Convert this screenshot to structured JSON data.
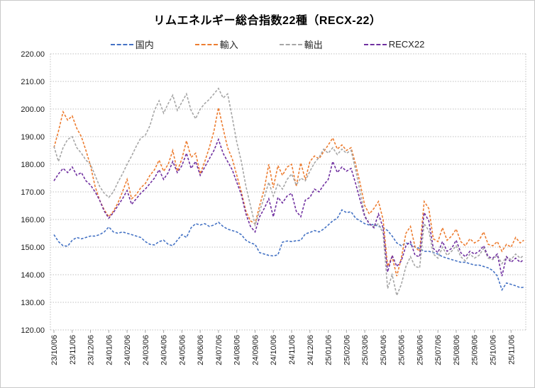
{
  "title": "リムエネルギー総合指数22種（RECX-22）",
  "legend": {
    "items": [
      {
        "key": "domestic",
        "label": "国内",
        "color": "#4472C4"
      },
      {
        "key": "import",
        "label": "輸入",
        "color": "#ED7D31"
      },
      {
        "key": "export",
        "label": "輸出",
        "color": "#A6A6A6"
      },
      {
        "key": "recx22",
        "label": "RECX22",
        "color": "#7030A0"
      }
    ]
  },
  "y_axis": {
    "min": 120,
    "max": 220,
    "step": 10,
    "tick_labels": [
      "220.00",
      "210.00",
      "200.00",
      "190.00",
      "180.00",
      "170.00",
      "160.00",
      "150.00",
      "140.00",
      "130.00",
      "120.00"
    ]
  },
  "x_axis": {
    "tick_labels": [
      "23/10/06",
      "23/11/06",
      "23/12/06",
      "24/01/06",
      "24/02/06",
      "24/03/06",
      "24/04/06",
      "24/05/06",
      "24/06/06",
      "24/07/06",
      "24/08/06",
      "24/09/06",
      "24/10/06",
      "24/11/06",
      "24/12/06",
      "25/01/06",
      "25/02/06",
      "25/03/06",
      "25/04/06",
      "25/05/06",
      "25/06/06",
      "25/07/06",
      "25/08/06",
      "25/09/06",
      "25/10/06",
      "25/11/06"
    ]
  },
  "chart_data": {
    "type": "line",
    "title": "リムエネルギー総合指数22種（RECX-22）",
    "line_style": "dashed",
    "grid": "horizontal-dotted",
    "legend_position": "top",
    "ylim": [
      120,
      220
    ],
    "x_unit": "months_after_2023-10-06",
    "x": [
      0,
      0.25,
      0.5,
      0.75,
      1,
      1.25,
      1.5,
      1.75,
      2,
      2.25,
      2.5,
      2.75,
      3,
      3.25,
      3.5,
      3.75,
      4,
      4.25,
      4.5,
      4.75,
      5,
      5.25,
      5.5,
      5.75,
      6,
      6.25,
      6.5,
      6.75,
      7,
      7.25,
      7.5,
      7.75,
      8,
      8.25,
      8.5,
      8.75,
      9,
      9.25,
      9.5,
      9.75,
      10,
      10.25,
      10.5,
      10.75,
      11,
      11.25,
      11.5,
      11.75,
      12,
      12.25,
      12.5,
      12.75,
      13,
      13.25,
      13.5,
      13.75,
      14,
      14.25,
      14.5,
      14.75,
      15,
      15.25,
      15.5,
      15.75,
      16,
      16.25,
      16.5,
      16.75,
      17,
      17.25,
      17.5,
      17.75,
      18,
      18.25,
      18.5,
      18.75,
      19,
      19.25,
      19.5,
      19.75,
      20,
      20.25,
      20.5,
      20.75,
      21,
      21.25,
      21.5,
      21.75,
      22,
      22.25,
      22.5,
      22.75,
      23,
      23.25,
      23.5,
      23.75,
      24,
      24.25,
      24.5,
      24.75,
      25,
      25.25,
      25.5,
      25.7
    ],
    "series": [
      {
        "key": "domestic",
        "name": "国内",
        "color": "#4472C4",
        "values": [
          154.5,
          152,
          150.5,
          150.3,
          152.5,
          153.5,
          153,
          153.5,
          154,
          154,
          154.5,
          155.5,
          157.3,
          155.5,
          155,
          155.5,
          155,
          154.5,
          154,
          153.5,
          152,
          151,
          150.8,
          152,
          152.5,
          151,
          150.5,
          152.5,
          154.5,
          153.5,
          157,
          158.5,
          158,
          158.5,
          157.5,
          158,
          159,
          157.5,
          156.5,
          156,
          155.5,
          154.5,
          152.5,
          151.5,
          151,
          148,
          147.5,
          147,
          146.8,
          147.2,
          151.8,
          152.2,
          152,
          152.3,
          152.5,
          154.8,
          155.3,
          156,
          155.5,
          156.5,
          158,
          159.5,
          160.5,
          163.5,
          162.5,
          162.8,
          160.5,
          159.5,
          158.5,
          158,
          158.2,
          157.5,
          157,
          156,
          154,
          151.5,
          150.5,
          151.5,
          151,
          150,
          149.5,
          148.5,
          148.5,
          148,
          147.5,
          146.5,
          146,
          145.5,
          145,
          144.5,
          144.5,
          144,
          143.5,
          143.5,
          143,
          142.5,
          141.5,
          139.5,
          134.5,
          137,
          136.5,
          136,
          135.3,
          135.5
        ]
      },
      {
        "key": "import",
        "name": "輸入",
        "color": "#ED7D31",
        "values": [
          186,
          192,
          199,
          196,
          197.5,
          193,
          190,
          185,
          179.5,
          172,
          167,
          163.5,
          161,
          163,
          166,
          170,
          174.5,
          167.5,
          169,
          171.5,
          173,
          176,
          178,
          181.5,
          177.5,
          180,
          185,
          177.5,
          182,
          188.5,
          182.5,
          184,
          176.5,
          181,
          186,
          192,
          200.5,
          193,
          186,
          182,
          176,
          170,
          163,
          159.5,
          158.5,
          165,
          171,
          180,
          171.5,
          179.5,
          176,
          179,
          180,
          172,
          180.5,
          174.5,
          181,
          183,
          182,
          184.5,
          187,
          189.5,
          185.5,
          187,
          185,
          186,
          180,
          173,
          165,
          162,
          164,
          166.5,
          160,
          143,
          146.5,
          139.5,
          146,
          155,
          157.5,
          150,
          148.5,
          166.5,
          164,
          153,
          152,
          157,
          152.5,
          154,
          156.5,
          152,
          150.5,
          153,
          151.5,
          152.5,
          155.5,
          151,
          150.5,
          152,
          148.5,
          151,
          150,
          153.5,
          151.5,
          152.5
        ]
      },
      {
        "key": "export",
        "name": "輸出",
        "color": "#A6A6A6",
        "values": [
          186.5,
          181,
          186,
          189,
          190,
          186,
          184,
          181.5,
          180,
          176,
          172,
          169.5,
          168,
          170,
          173.5,
          176.5,
          180,
          183,
          186.5,
          189.5,
          190.5,
          194,
          199.5,
          203,
          198.5,
          202,
          205,
          199.5,
          202.5,
          205.5,
          199.5,
          196.5,
          200,
          202,
          203.5,
          205.5,
          207.5,
          204,
          205.5,
          197,
          188,
          181,
          172,
          165,
          158,
          163,
          168,
          173.5,
          168.5,
          173,
          171,
          174.5,
          176.5,
          172.5,
          175,
          174,
          177.5,
          180.5,
          182.5,
          185.5,
          184,
          186,
          183.5,
          185.5,
          184,
          185,
          178,
          170,
          161.5,
          158.5,
          157.5,
          158.5,
          155,
          135,
          140,
          132.5,
          136.5,
          143,
          146.5,
          143,
          142.5,
          158.5,
          156,
          147.5,
          146,
          150,
          147,
          148.5,
          150.5,
          146.5,
          145,
          147.5,
          146,
          147,
          149.5,
          146,
          145.5,
          147,
          144,
          146.5,
          145.5,
          147.5,
          146,
          147
        ]
      },
      {
        "key": "recx22",
        "name": "RECX22",
        "color": "#7030A0",
        "values": [
          174,
          176.5,
          178.5,
          177,
          179,
          176,
          177,
          174,
          172.5,
          170,
          167,
          163,
          160.5,
          162.5,
          165,
          167.5,
          170.5,
          165.5,
          167.5,
          169.5,
          171,
          173,
          175,
          178,
          174.5,
          177,
          181,
          177,
          179.5,
          184,
          178.5,
          181,
          176,
          179,
          182,
          185,
          189,
          184,
          181,
          178,
          173.5,
          169,
          162,
          157.5,
          155.5,
          161,
          164,
          167.5,
          161,
          168,
          166,
          168.5,
          169.5,
          163,
          161,
          167,
          168,
          171,
          170,
          172.5,
          174.5,
          181,
          177,
          179,
          177.5,
          178.5,
          173,
          167,
          161,
          158.5,
          157,
          162,
          157,
          141,
          147,
          143,
          145,
          150.5,
          152,
          147,
          146.5,
          162.5,
          159.5,
          149.5,
          148,
          152,
          148.5,
          149.5,
          152.5,
          148,
          146.5,
          148.5,
          147.5,
          148.5,
          150.5,
          146.5,
          146,
          147.5,
          139.5,
          146.5,
          144.5,
          146,
          144.5,
          145.5
        ]
      }
    ]
  }
}
